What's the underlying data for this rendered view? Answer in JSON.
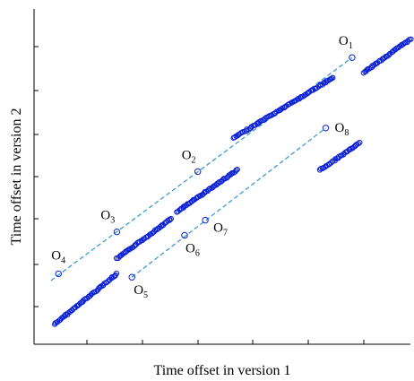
{
  "chart_data": {
    "type": "scatter",
    "xlabel": "Time offset in version 1",
    "ylabel": "Time offset in version 2",
    "title": "",
    "xlim": [
      0,
      100
    ],
    "ylim": [
      0,
      100
    ],
    "grid": false,
    "legend": "none",
    "colors": {
      "marker": "#0a1fd4",
      "reference_line": "#3a9ccc",
      "axis": "#000000"
    },
    "dense_segments": [
      {
        "name": "segment-1",
        "x": [
          5.5,
          22.0
        ],
        "y": [
          6.0,
          21.0
        ]
      },
      {
        "name": "segment-2",
        "x": [
          22.0,
          36.5
        ],
        "y": [
          25.5,
          37.5
        ]
      },
      {
        "name": "segment-3",
        "x": [
          38.0,
          54.0
        ],
        "y": [
          39.5,
          52.0
        ]
      },
      {
        "name": "segment-4",
        "x": [
          53.0,
          79.5
        ],
        "y": [
          61.5,
          79.5
        ]
      },
      {
        "name": "segment-5",
        "x": [
          87.5,
          100.0
        ],
        "y": [
          81.0,
          91.0
        ]
      },
      {
        "name": "segment-6",
        "x": [
          76.0,
          86.5
        ],
        "y": [
          52.0,
          60.0
        ]
      }
    ],
    "reference_lines": [
      {
        "name": "line-upper",
        "x": [
          4.5,
          84.5
        ],
        "y": [
          19.0,
          85.5
        ]
      },
      {
        "name": "line-lower",
        "x": [
          26.0,
          77.5
        ],
        "y": [
          20.0,
          64.5
        ]
      }
    ],
    "outliers": [
      {
        "label": "O",
        "sub": "1",
        "x": 84.5,
        "y": 85.5
      },
      {
        "label": "O",
        "sub": "2",
        "x": 43.5,
        "y": 51.5
      },
      {
        "label": "O",
        "sub": "3",
        "x": 22.0,
        "y": 33.5
      },
      {
        "label": "O",
        "sub": "4",
        "x": 6.5,
        "y": 21.0
      },
      {
        "label": "O",
        "sub": "5",
        "x": 26.0,
        "y": 20.0
      },
      {
        "label": "O",
        "sub": "6",
        "x": 40.0,
        "y": 32.5
      },
      {
        "label": "O",
        "sub": "7",
        "x": 45.5,
        "y": 37.0
      },
      {
        "label": "O",
        "sub": "8",
        "x": 77.5,
        "y": 64.5
      }
    ]
  }
}
